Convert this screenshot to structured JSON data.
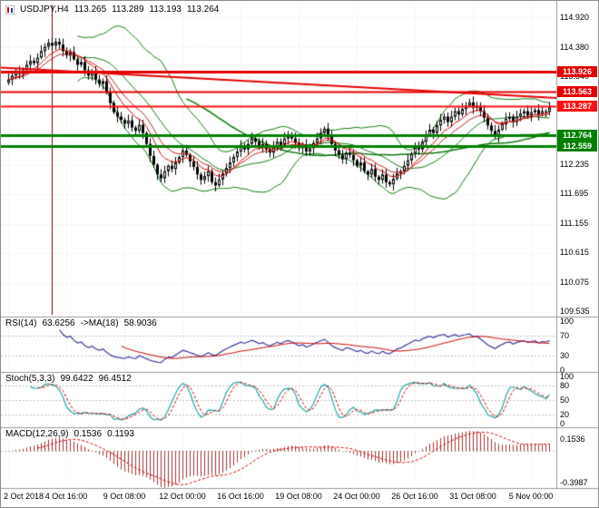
{
  "main_chart": {
    "symbol_period": "USDJPY,H4",
    "ohlc_display": {
      "open": "113.265",
      "high": "113.289",
      "low": "113.193",
      "close": "113.264"
    },
    "price_axis_labels": [
      "114.920",
      "114.380",
      "113.840",
      "112.235",
      "111.695",
      "111.155",
      "110.615",
      "110.075",
      "109.535"
    ],
    "level_badges": [
      {
        "value": "113.926",
        "color": "#e60000"
      },
      {
        "value": "113.563",
        "color": "#e60000"
      },
      {
        "value": "113.287",
        "color": "#ff1010"
      },
      {
        "value": "112.764",
        "color": "#008000"
      },
      {
        "value": "112.559",
        "color": "#008000"
      }
    ]
  },
  "panels": {
    "rsi": {
      "name": "RSI(14)",
      "value": "63.6256",
      "ma_name": "->MA(18)",
      "ma_value": "58.9036",
      "axis_labels": [
        "100",
        "70",
        "30",
        "0"
      ]
    },
    "stoch": {
      "name": "Stoch(5,3,3)",
      "value_k": "99.6422",
      "value_d": "96.4512",
      "axis_labels": [
        "100",
        "80",
        "50",
        "20",
        "0"
      ]
    },
    "macd": {
      "name": "MACD(12,26,9)",
      "value_main": "0.1536",
      "value_signal": "0.1193",
      "axis_labels": [
        "0.1536",
        "-0.3987"
      ]
    }
  },
  "time_axis_labels": [
    "2 Oct 2018",
    "4 Oct 16:00",
    "9 Oct 08:00",
    "12 Oct 00:00",
    "16 Oct 16:00",
    "19 Oct 08:00",
    "24 Oct 00:00",
    "26 Oct 16:00",
    "31 Oct 08:00",
    "5 Nov 00:00"
  ],
  "colors": {
    "background": "#ffffff",
    "candle_outline": "#000000",
    "bullish_candle": "#ffffff",
    "bearish_candle": "#000000",
    "bands": "#0b7a0b",
    "ma_red": "#d40000",
    "ma_red2": "#c22020",
    "rsi_line": "#3c3c9e",
    "rsi_ma": "#cc0000",
    "stoch_main": "#1fa8a8",
    "stoch_signal": "#d40000",
    "macd_histogram": "#a83232",
    "macd_signal": "#d40000",
    "grid": "#e6e6e6",
    "panel_level": "#c0c0c0",
    "separator": "#9a9a9a",
    "vline": "#7a0000"
  },
  "chart_data": {
    "type": "candlestick",
    "title": "USDJPY,H4",
    "timeframe": "H4",
    "ylim": [
      109.4,
      115.15
    ],
    "x_tick_labels": [
      "2 Oct 2018",
      "4 Oct 16:00",
      "9 Oct 08:00",
      "12 Oct 00:00",
      "16 Oct 16:00",
      "19 Oct 08:00",
      "24 Oct 00:00",
      "26 Oct 16:00",
      "31 Oct 08:00",
      "5 Nov 00:00"
    ],
    "bars_per_tick": 16,
    "first_open": 113.72,
    "closes": [
      113.78,
      113.85,
      113.92,
      113.88,
      113.95,
      114.05,
      114.12,
      114.08,
      114.18,
      114.3,
      114.38,
      114.45,
      114.4,
      114.47,
      114.42,
      114.3,
      114.22,
      114.28,
      114.15,
      114.05,
      114.1,
      113.95,
      113.85,
      113.92,
      113.78,
      113.7,
      113.75,
      113.55,
      113.35,
      113.18,
      113.1,
      113.04,
      112.97,
      113.03,
      112.9,
      112.84,
      112.95,
      112.8,
      112.6,
      112.38,
      112.22,
      112.04,
      111.97,
      112.1,
      112.2,
      112.14,
      112.26,
      112.36,
      112.48,
      112.4,
      112.28,
      112.18,
      112.04,
      111.94,
      112.01,
      112.1,
      111.9,
      111.84,
      111.95,
      112.06,
      112.16,
      112.26,
      112.36,
      112.46,
      112.56,
      112.5,
      112.6,
      112.7,
      112.64,
      112.54,
      112.6,
      112.5,
      112.44,
      112.54,
      112.64,
      112.58,
      112.7,
      112.76,
      112.7,
      112.62,
      112.52,
      112.58,
      112.46,
      112.52,
      112.62,
      112.7,
      112.8,
      112.88,
      112.76,
      112.6,
      112.48,
      112.4,
      112.32,
      112.44,
      112.4,
      112.3,
      112.2,
      112.26,
      112.1,
      112.04,
      112.14,
      112.0,
      111.94,
      112.04,
      111.9,
      111.86,
      111.96,
      112.06,
      112.1,
      112.2,
      112.3,
      112.42,
      112.54,
      112.5,
      112.64,
      112.76,
      112.86,
      112.8,
      112.94,
      113.04,
      113.1,
      113.0,
      113.1,
      113.2,
      113.14,
      113.24,
      113.3,
      113.36,
      113.26,
      113.3,
      113.2,
      113.08,
      112.94,
      112.84,
      112.74,
      112.86,
      112.96,
      113.06,
      113.1,
      113.0,
      113.1,
      113.16,
      113.2,
      113.12,
      113.18,
      113.22,
      113.14,
      113.2,
      113.19,
      113.264
    ],
    "current_bar_ohlc": [
      113.265,
      113.289,
      113.193,
      113.264
    ],
    "overlays": {
      "bollinger": {
        "period": 20,
        "deviation": 2
      },
      "sma_long": {
        "period": 50
      },
      "ema_fast": {
        "period": 8
      },
      "ema_mid": {
        "period": 13
      },
      "horizontal_lines": [
        {
          "value": 113.926,
          "color": "#e60000",
          "width": 3
        },
        {
          "value": 113.563,
          "color": "#e60000",
          "width": 2
        },
        {
          "value": 113.287,
          "color": "#ff1010",
          "width": 2
        },
        {
          "value": 112.764,
          "color": "#008000",
          "width": 3
        },
        {
          "value": 112.559,
          "color": "#008000",
          "width": 3
        }
      ],
      "trendline": {
        "from_value": 114.0,
        "to_value": 113.44,
        "color": "#e60000",
        "width": 2
      },
      "vertical_line_bar": 12
    },
    "indicators": {
      "rsi": {
        "period": 14,
        "ma_period": 18,
        "current": 63.6256,
        "ma_current": 58.9036,
        "levels": [
          70,
          30
        ],
        "range": [
          0,
          100
        ]
      },
      "stochastic": {
        "k": 5,
        "d": 3,
        "slowing": 3,
        "current_k": 99.6422,
        "current_d": 96.4512,
        "levels": [
          80,
          50,
          20
        ],
        "range": [
          0,
          100
        ]
      },
      "macd": {
        "fast": 12,
        "slow": 26,
        "signal": 9,
        "current_main": 0.1536,
        "current_signal": 0.1193,
        "range": [
          -0.42,
          0.22
        ]
      }
    }
  }
}
